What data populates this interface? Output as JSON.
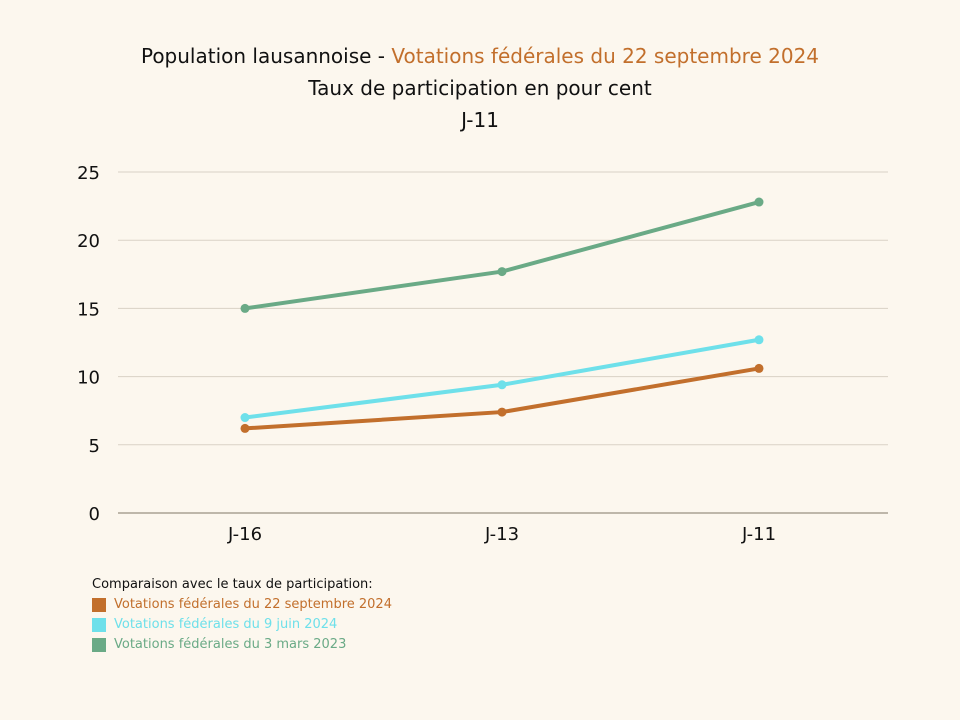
{
  "title": {
    "prefix": "Population lausannoise - ",
    "accent": "Votations fédérales du 22 septembre 2024",
    "line2": "Taux de participation en pour cent",
    "line3": "J-11"
  },
  "legend": {
    "header": "Comparaison avec le taux de participation:",
    "items": [
      {
        "label": "Votations fédérales du 22 septembre 2024",
        "color": "#c26f2c"
      },
      {
        "label": "Votations fédérales du 9 juin 2024",
        "color": "#6ee0ea"
      },
      {
        "label": "Votations fédérales du 3 mars 2023",
        "color": "#6aaa86"
      }
    ]
  },
  "chart_data": {
    "type": "line",
    "categories": [
      "J-16",
      "J-13",
      "J-11"
    ],
    "ylim": [
      0,
      25
    ],
    "yticks": [
      0,
      5,
      10,
      15,
      20,
      25
    ],
    "grid": true,
    "legend_position": "bottom-left",
    "series": [
      {
        "name": "Votations fédérales du 22 septembre 2024",
        "color": "#c26f2c",
        "values": [
          6.2,
          7.4,
          10.6
        ]
      },
      {
        "name": "Votations fédérales du 9 juin 2024",
        "color": "#6ee0ea",
        "values": [
          7.0,
          9.4,
          12.7
        ]
      },
      {
        "name": "Votations fédérales du 3 mars 2023",
        "color": "#6aaa86",
        "values": [
          15.0,
          17.7,
          22.8
        ]
      }
    ]
  }
}
